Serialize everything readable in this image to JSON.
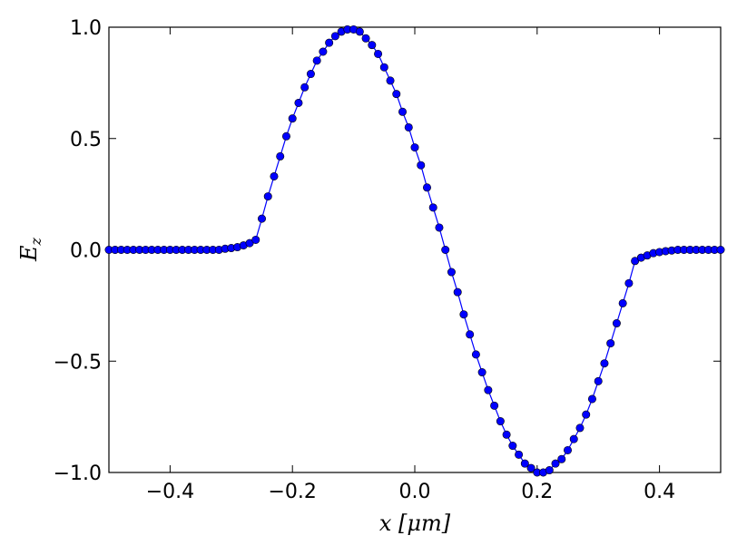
{
  "chart_data": {
    "type": "line",
    "title": "",
    "xlabel": "x [μm]",
    "ylabel": "E_z",
    "xlim": [
      -0.5,
      0.5
    ],
    "ylim": [
      -1.0,
      1.0
    ],
    "xticks": [
      -0.4,
      -0.2,
      0.0,
      0.2,
      0.4
    ],
    "xtick_labels": [
      "−0.4",
      "−0.2",
      "0.0",
      "0.2",
      "0.4"
    ],
    "yticks": [
      1.0,
      0.5,
      0.0,
      -0.5,
      -1.0
    ],
    "ytick_labels": [
      "1.0",
      "0.5",
      "0.0",
      "−0.5",
      "−1.0"
    ],
    "grid": false,
    "legend": "none",
    "series": [
      {
        "color": "#0000ff",
        "marker": "circle",
        "x": [
          -0.5,
          -0.49,
          -0.48,
          -0.47,
          -0.46,
          -0.45,
          -0.44,
          -0.43,
          -0.42,
          -0.41,
          -0.4,
          -0.39,
          -0.38,
          -0.37,
          -0.36,
          -0.35,
          -0.34,
          -0.33,
          -0.32,
          -0.31,
          -0.3,
          -0.29,
          -0.28,
          -0.27,
          -0.26,
          -0.25,
          -0.24,
          -0.23,
          -0.22,
          -0.21,
          -0.2,
          -0.19,
          -0.18,
          -0.17,
          -0.16,
          -0.15,
          -0.14,
          -0.13,
          -0.12,
          -0.11,
          -0.1,
          -0.09,
          -0.08,
          -0.07,
          -0.06,
          -0.05,
          -0.04,
          -0.03,
          -0.02,
          -0.01,
          0.0,
          0.01,
          0.02,
          0.03,
          0.04,
          0.05,
          0.06,
          0.07,
          0.08,
          0.09,
          0.1,
          0.11,
          0.12,
          0.13,
          0.14,
          0.15,
          0.16,
          0.17,
          0.18,
          0.19,
          0.2,
          0.21,
          0.22,
          0.23,
          0.24,
          0.25,
          0.26,
          0.27,
          0.28,
          0.29,
          0.3,
          0.31,
          0.32,
          0.33,
          0.34,
          0.35,
          0.36,
          0.37,
          0.38,
          0.39,
          0.4,
          0.41,
          0.42,
          0.43,
          0.44,
          0.45,
          0.46,
          0.47,
          0.48,
          0.49,
          0.5
        ],
        "y": [
          0.0,
          0.0,
          0.0,
          0.0,
          0.0,
          0.0,
          0.0,
          0.0,
          0.0,
          0.0,
          0.0,
          0.0,
          0.0,
          0.0,
          0.0,
          0.0,
          0.0,
          0.0,
          0.0,
          0.005,
          0.008,
          0.012,
          0.02,
          0.03,
          0.045,
          0.14,
          0.24,
          0.33,
          0.42,
          0.51,
          0.59,
          0.66,
          0.73,
          0.79,
          0.85,
          0.89,
          0.93,
          0.96,
          0.98,
          0.99,
          0.99,
          0.98,
          0.95,
          0.92,
          0.88,
          0.82,
          0.76,
          0.7,
          0.62,
          0.55,
          0.46,
          0.38,
          0.28,
          0.19,
          0.1,
          0.0,
          -0.1,
          -0.19,
          -0.29,
          -0.38,
          -0.47,
          -0.55,
          -0.63,
          -0.7,
          -0.77,
          -0.83,
          -0.88,
          -0.92,
          -0.96,
          -0.98,
          -1.0,
          -1.0,
          -0.99,
          -0.96,
          -0.94,
          -0.9,
          -0.85,
          -0.8,
          -0.74,
          -0.67,
          -0.59,
          -0.51,
          -0.42,
          -0.33,
          -0.24,
          -0.15,
          -0.05,
          -0.035,
          -0.025,
          -0.015,
          -0.01,
          -0.006,
          -0.003,
          0.0,
          0.0,
          0.0,
          0.0,
          0.0,
          0.0,
          0.0,
          0.0
        ]
      }
    ]
  }
}
